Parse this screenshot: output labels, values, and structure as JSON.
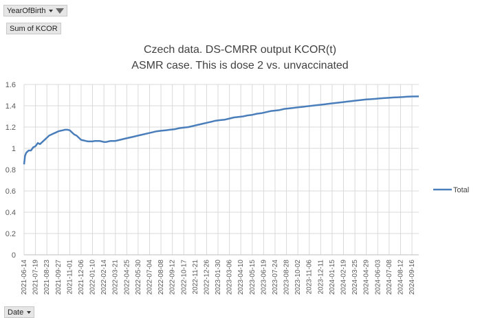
{
  "pivot": {
    "filter_field": "YearOfBirth",
    "value_field": "Sum of KCOR",
    "axis_field": "Date"
  },
  "chart_data": {
    "type": "line",
    "title_line1": "Czech data. DS-CMRR output KCOR(t)",
    "title_line2": "ASMR case. This is dose 2 vs. unvaccinated",
    "ylim": [
      0,
      1.6
    ],
    "yticks": [
      "0",
      "0.2",
      "0.4",
      "0.6",
      "0.8",
      "1",
      "1.2",
      "1.4",
      "1.6"
    ],
    "grid": true,
    "legend_position": "right",
    "x_start": "2021-06-14",
    "x_end": "2024-10-07",
    "xticks": [
      "2021-06-14",
      "2021-07-19",
      "2021-08-23",
      "2021-09-27",
      "2021-11-01",
      "2021-12-06",
      "2022-01-10",
      "2022-02-14",
      "2022-03-21",
      "2022-04-25",
      "2022-05-30",
      "2022-07-04",
      "2022-08-08",
      "2022-09-12",
      "2022-10-17",
      "2022-11-21",
      "2022-12-26",
      "2023-01-30",
      "2023-03-06",
      "2023-04-10",
      "2023-05-15",
      "2023-06-19",
      "2023-07-24",
      "2023-08-28",
      "2023-10-02",
      "2023-11-06",
      "2023-12-11",
      "2024-01-15",
      "2024-02-19",
      "2024-03-25",
      "2024-04-29",
      "2024-06-03",
      "2024-07-08",
      "2024-08-12",
      "2024-09-16"
    ],
    "series": [
      {
        "name": "Total",
        "color": "#4a7ebb",
        "x": [
          "2021-06-14",
          "2021-06-17",
          "2021-06-21",
          "2021-06-28",
          "2021-07-05",
          "2021-07-12",
          "2021-07-19",
          "2021-07-26",
          "2021-08-02",
          "2021-08-09",
          "2021-08-16",
          "2021-08-23",
          "2021-08-30",
          "2021-09-06",
          "2021-09-13",
          "2021-09-20",
          "2021-09-27",
          "2021-10-04",
          "2021-10-11",
          "2021-10-18",
          "2021-10-25",
          "2021-11-01",
          "2021-11-08",
          "2021-11-15",
          "2021-11-22",
          "2021-11-29",
          "2021-12-06",
          "2021-12-13",
          "2021-12-20",
          "2021-12-27",
          "2022-01-03",
          "2022-01-10",
          "2022-01-17",
          "2022-01-24",
          "2022-01-31",
          "2022-02-07",
          "2022-02-14",
          "2022-02-21",
          "2022-02-28",
          "2022-03-07",
          "2022-03-14",
          "2022-03-21",
          "2022-04-04",
          "2022-04-18",
          "2022-05-02",
          "2022-05-16",
          "2022-05-30",
          "2022-06-13",
          "2022-06-27",
          "2022-07-11",
          "2022-07-25",
          "2022-08-08",
          "2022-08-22",
          "2022-09-05",
          "2022-09-19",
          "2022-10-03",
          "2022-10-17",
          "2022-10-31",
          "2022-11-14",
          "2022-11-28",
          "2022-12-12",
          "2022-12-26",
          "2023-01-09",
          "2023-01-23",
          "2023-02-06",
          "2023-02-20",
          "2023-03-06",
          "2023-03-20",
          "2023-04-03",
          "2023-04-17",
          "2023-05-01",
          "2023-05-15",
          "2023-05-29",
          "2023-06-12",
          "2023-06-26",
          "2023-07-10",
          "2023-07-24",
          "2023-08-07",
          "2023-08-21",
          "2023-09-04",
          "2023-09-18",
          "2023-10-02",
          "2023-10-16",
          "2023-10-30",
          "2023-11-13",
          "2023-11-27",
          "2023-12-11",
          "2023-12-25",
          "2024-01-08",
          "2024-01-22",
          "2024-02-05",
          "2024-02-19",
          "2024-03-04",
          "2024-03-18",
          "2024-04-01",
          "2024-04-15",
          "2024-04-29",
          "2024-05-13",
          "2024-05-27",
          "2024-06-10",
          "2024-06-24",
          "2024-07-08",
          "2024-07-22",
          "2024-08-05",
          "2024-08-19",
          "2024-09-02",
          "2024-09-16",
          "2024-09-30",
          "2024-10-07"
        ],
        "y": [
          0.85,
          0.93,
          0.96,
          0.98,
          0.98,
          1.01,
          1.02,
          1.05,
          1.04,
          1.06,
          1.08,
          1.1,
          1.12,
          1.13,
          1.14,
          1.15,
          1.16,
          1.165,
          1.17,
          1.175,
          1.175,
          1.17,
          1.15,
          1.13,
          1.12,
          1.1,
          1.08,
          1.075,
          1.07,
          1.065,
          1.065,
          1.065,
          1.07,
          1.07,
          1.07,
          1.065,
          1.06,
          1.06,
          1.065,
          1.07,
          1.07,
          1.07,
          1.08,
          1.09,
          1.1,
          1.11,
          1.12,
          1.13,
          1.14,
          1.15,
          1.16,
          1.165,
          1.17,
          1.175,
          1.18,
          1.19,
          1.195,
          1.2,
          1.21,
          1.22,
          1.23,
          1.24,
          1.25,
          1.26,
          1.265,
          1.27,
          1.28,
          1.29,
          1.295,
          1.3,
          1.31,
          1.315,
          1.325,
          1.33,
          1.34,
          1.35,
          1.355,
          1.36,
          1.37,
          1.375,
          1.38,
          1.385,
          1.39,
          1.395,
          1.4,
          1.405,
          1.41,
          1.415,
          1.42,
          1.425,
          1.43,
          1.435,
          1.44,
          1.445,
          1.45,
          1.455,
          1.46,
          1.462,
          1.465,
          1.47,
          1.472,
          1.475,
          1.478,
          1.48,
          1.482,
          1.485,
          1.487,
          1.488,
          1.488
        ]
      }
    ]
  }
}
